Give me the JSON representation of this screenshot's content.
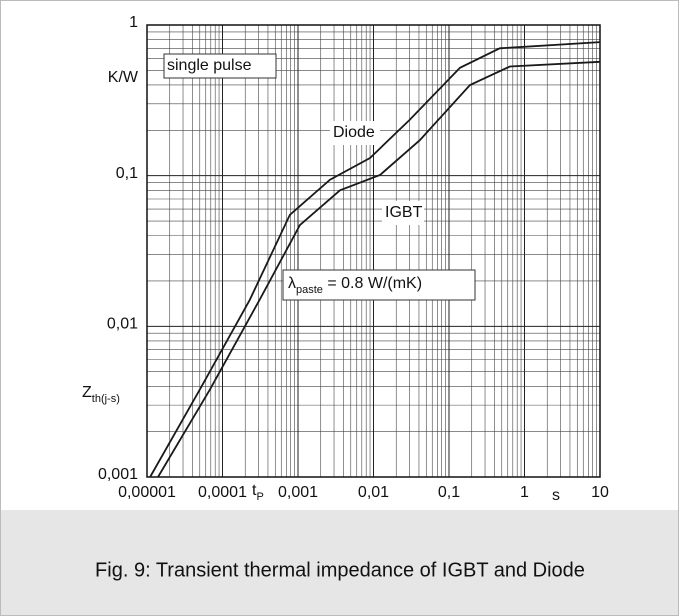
{
  "chart_data": {
    "type": "line",
    "log_x": true,
    "log_y": true,
    "grid": true,
    "minor_grid": true,
    "ylabel_top": "K/W",
    "ylabel": {
      "main": "Z",
      "sub": "th(j-s)"
    },
    "xlabel": {
      "main": "t",
      "sub": "P"
    },
    "xunit": "s",
    "xlim": [
      1e-05,
      10
    ],
    "ylim": [
      0.001,
      1
    ],
    "xticks": [
      {
        "value": 1e-05,
        "label": "0,00001"
      },
      {
        "value": 0.0001,
        "label": "0,0001"
      },
      {
        "value": 0.001,
        "label": "0,001"
      },
      {
        "value": 0.01,
        "label": "0,01"
      },
      {
        "value": 0.1,
        "label": "0,1"
      },
      1,
      10
    ],
    "yticks": [
      {
        "value": 0.001,
        "label": "0,001"
      },
      {
        "value": 0.01,
        "label": "0,01"
      },
      {
        "value": 0.1,
        "label": "0,1"
      },
      1
    ],
    "series": [
      {
        "name": "Diode",
        "color": "#1a1a1a",
        "x": [
          1.1e-05,
          5e-05,
          0.00023,
          0.00078,
          0.00265,
          0.009,
          0.03,
          0.14,
          0.47,
          10
        ],
        "values": [
          0.001,
          0.0038,
          0.015,
          0.055,
          0.094,
          0.131,
          0.234,
          0.52,
          0.7,
          0.77
        ]
      },
      {
        "name": "IGBT",
        "color": "#1a1a1a",
        "x": [
          1.4e-05,
          6.8e-05,
          0.00031,
          0.00106,
          0.0036,
          0.0122,
          0.041,
          0.19,
          0.64,
          10
        ],
        "values": [
          0.001,
          0.0038,
          0.015,
          0.047,
          0.08,
          0.101,
          0.172,
          0.4,
          0.53,
          0.57
        ]
      }
    ],
    "annotations": [
      {
        "text": "single pulse"
      }
    ],
    "lambda_note": {
      "symbol": "λ",
      "sub": "paste",
      "rest": " = 0.8 W/(mK)"
    }
  },
  "caption": "Fig. 9: Transient thermal impedance of IGBT and Diode"
}
